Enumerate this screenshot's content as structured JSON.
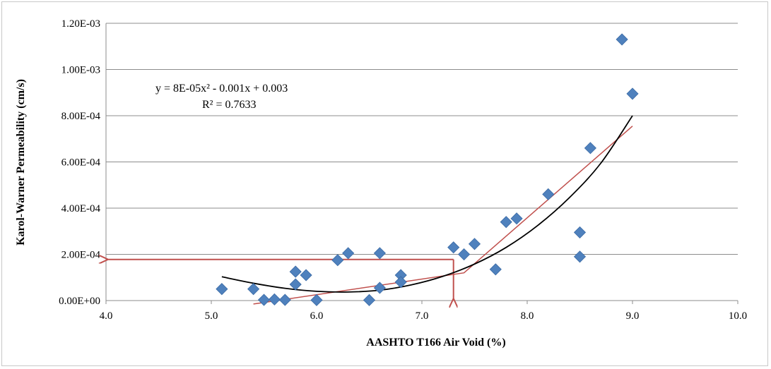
{
  "chart_data": {
    "type": "scatter",
    "xlabel": "AASHTO T166 Air Void (%)",
    "ylabel": "Karol-Warner Permeability (cm/s)",
    "xlim": [
      4.0,
      10.0
    ],
    "ylim": [
      0,
      0.0012
    ],
    "x_ticks": [
      4.0,
      5.0,
      6.0,
      7.0,
      8.0,
      9.0,
      10.0
    ],
    "x_tick_labels": [
      "4.0",
      "5.0",
      "6.0",
      "7.0",
      "8.0",
      "9.0",
      "10.0"
    ],
    "y_ticks": [
      0,
      0.0002,
      0.0004,
      0.0006,
      0.0008,
      0.001,
      0.0012
    ],
    "y_tick_labels": [
      "0.00E+00",
      "2.00E-04",
      "4.00E-04",
      "6.00E-04",
      "8.00E-04",
      "1.00E-03",
      "1.20E-03"
    ],
    "grid": "horizontal",
    "marker_color": "#4f81bd",
    "trendline_color": "#000000",
    "annotation_color": "#c0504d",
    "points": [
      [
        5.1,
        5e-05
      ],
      [
        5.4,
        5e-05
      ],
      [
        5.5,
        3e-06
      ],
      [
        5.6,
        5e-06
      ],
      [
        5.7,
        3e-06
      ],
      [
        5.8,
        0.000125
      ],
      [
        5.8,
        7e-05
      ],
      [
        5.9,
        0.00011
      ],
      [
        6.0,
        2e-06
      ],
      [
        6.2,
        0.000175
      ],
      [
        6.3,
        0.000205
      ],
      [
        6.5,
        2e-06
      ],
      [
        6.6,
        0.000205
      ],
      [
        6.6,
        5.5e-05
      ],
      [
        6.8,
        0.00011
      ],
      [
        6.8,
        8e-05
      ],
      [
        7.3,
        0.00023
      ],
      [
        7.4,
        0.0002
      ],
      [
        7.5,
        0.000245
      ],
      [
        7.7,
        0.000135
      ],
      [
        7.8,
        0.00034
      ],
      [
        7.9,
        0.000355
      ],
      [
        8.2,
        0.00046
      ],
      [
        8.5,
        0.000295
      ],
      [
        8.5,
        0.00019
      ],
      [
        8.6,
        0.00066
      ],
      [
        8.9,
        0.00113
      ],
      [
        9.0,
        0.000895
      ]
    ],
    "trendline": {
      "type": "polynomial",
      "equation": "y = 8E-05x² - 0.001x + 0.003",
      "r_squared": "R² = 0.7633",
      "x_range": [
        5.1,
        9.0
      ],
      "curve": [
        [
          5.1,
          0.000103
        ],
        [
          5.4,
          7.5e-05
        ],
        [
          5.7,
          5.3e-05
        ],
        [
          6.0,
          4e-05
        ],
        [
          6.3,
          3.7e-05
        ],
        [
          6.6,
          4.5e-05
        ],
        [
          6.9,
          6.8e-05
        ],
        [
          7.2,
          0.000105
        ],
        [
          7.5,
          0.000158
        ],
        [
          7.8,
          0.00023
        ],
        [
          8.1,
          0.000325
        ],
        [
          8.4,
          0.000445
        ],
        [
          8.7,
          0.000595
        ],
        [
          9.0,
          0.0008
        ]
      ]
    },
    "annotation_lines": {
      "bilinear_fit": [
        [
          5.4,
          -1.5e-05
        ],
        [
          7.4,
          0.00012
        ],
        [
          9.0,
          0.000755
        ]
      ],
      "horizontal_arrow": {
        "from": [
          7.3,
          0.000178
        ],
        "to": [
          4.0,
          0.000178
        ]
      },
      "vertical_arrow": {
        "from": [
          7.3,
          0.000178
        ],
        "to": [
          7.3,
          0.0
        ]
      }
    }
  }
}
